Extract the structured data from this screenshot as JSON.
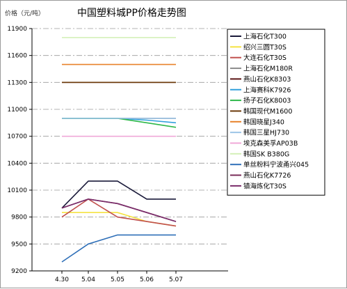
{
  "chart_data": {
    "type": "line",
    "title": "中国塑料城PP价格走势图",
    "ylabel": "价格（元/吨）",
    "xlabel": "",
    "categories": [
      "4.30",
      "5.04",
      "5.05",
      "5.06",
      "5.07"
    ],
    "ylim": [
      9200,
      11900
    ],
    "yticks": [
      9200,
      9500,
      9800,
      10100,
      10400,
      10700,
      11000,
      11300,
      11600,
      11900
    ],
    "grid": "horizontal dash-dot",
    "legend_position": "right",
    "series": [
      {
        "name": "上海石化T300",
        "color": "#1a1a3a",
        "values": [
          9900,
          10200,
          10200,
          10000,
          10000
        ]
      },
      {
        "name": "绍兴三圆T30S",
        "color": "#f5e342",
        "values": [
          9850,
          9850,
          9850,
          9750,
          9700
        ]
      },
      {
        "name": "大连石化T30S",
        "color": "#c0504d",
        "values": [
          9800,
          10000,
          9800,
          9750,
          9700
        ]
      },
      {
        "name": "上海石化M180R",
        "color": "#8c8c8c",
        "values": [
          10900,
          10900,
          10900,
          10900,
          10900
        ]
      },
      {
        "name": "燕山石化K8303",
        "color": "#5a1414",
        "values": [
          11300,
          11300,
          11300,
          11300,
          11300
        ]
      },
      {
        "name": "上海赛科K7926",
        "color": "#31a0dc",
        "values": [
          10900,
          10900,
          10900,
          10880,
          10850
        ]
      },
      {
        "name": "扬子石化K8003",
        "color": "#2db84a",
        "values": [
          10900,
          10900,
          10900,
          10850,
          10800
        ]
      },
      {
        "name": "韩国现代M1600",
        "color": "#6b3a0a",
        "values": [
          11300,
          11300,
          11300,
          11300,
          11300
        ]
      },
      {
        "name": "韩国晓星J340",
        "color": "#e8822a",
        "values": [
          11500,
          11500,
          11500,
          11500,
          11500
        ]
      },
      {
        "name": "韩国三星HJ730",
        "color": "#9bc4e6",
        "values": [
          10900,
          10900,
          10900,
          10900,
          10900
        ]
      },
      {
        "name": "埃克森美孚AP03B",
        "color": "#f0a8d8",
        "values": [
          10700,
          10700,
          10700,
          10700,
          10700
        ]
      },
      {
        "name": "韩国SK B380G",
        "color": "#d4f0b8",
        "values": [
          11800,
          11800,
          11800,
          11800,
          11800
        ]
      },
      {
        "name": "单丝粉料宁波甬兴045",
        "color": "#2e6fb8",
        "values": [
          9300,
          9500,
          9600,
          9600,
          9600
        ]
      },
      {
        "name": "燕山石化K7726",
        "color": "#7a2d5a",
        "values": [
          9900,
          10000,
          9950,
          9850,
          9750
        ]
      },
      {
        "name": "镇海炼化T30S",
        "color": "#7a2d6a",
        "values": [
          9900,
          10000,
          9950,
          9850,
          9750
        ]
      }
    ]
  }
}
